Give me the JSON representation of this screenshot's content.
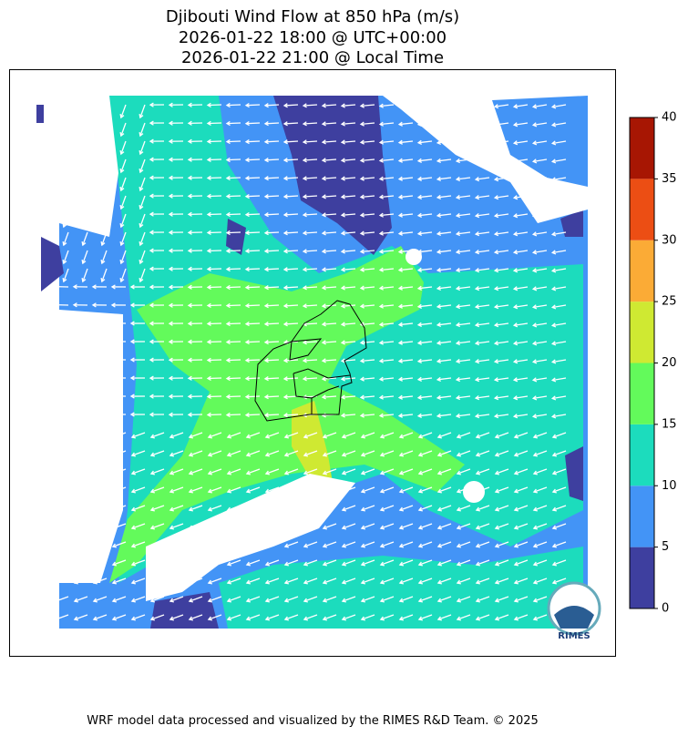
{
  "title": [
    "Djibouti Wind Flow at 850 hPa (m/s)",
    "2026-01-22 18:00 @ UTC+00:00",
    "2026-01-22 21:00 @ Local Time"
  ],
  "colorbar": {
    "ticks": [
      0,
      5,
      10,
      15,
      20,
      25,
      30,
      35,
      40
    ],
    "colors": [
      "#3e3f9f",
      "#4394f6",
      "#1cdcbd",
      "#63fa5b",
      "#cfe932",
      "#fbab36",
      "#ec4e14",
      "#a71603"
    ]
  },
  "logo": "RIMES",
  "footer": "WRF model data processed and visualized by the RIMES R&D Team. © 2025"
}
